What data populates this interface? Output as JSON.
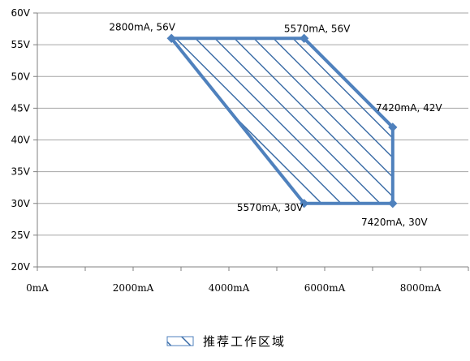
{
  "chart_data": {
    "type": "area",
    "title": "",
    "xlabel": "",
    "ylabel": "",
    "xlim": [
      0,
      9000
    ],
    "ylim": [
      20,
      60
    ],
    "x_ticks": [
      {
        "value": 0,
        "label": "0mA"
      },
      {
        "value": 2000,
        "label": "2000mA"
      },
      {
        "value": 4000,
        "label": "4000mA"
      },
      {
        "value": 6000,
        "label": "6000mA"
      },
      {
        "value": 8000,
        "label": "8000mA"
      }
    ],
    "y_ticks": [
      {
        "value": 20,
        "label": "20V"
      },
      {
        "value": 25,
        "label": "25V"
      },
      {
        "value": 30,
        "label": "30V"
      },
      {
        "value": 35,
        "label": "35V"
      },
      {
        "value": 40,
        "label": "40V"
      },
      {
        "value": 45,
        "label": "45V"
      },
      {
        "value": 50,
        "label": "50V"
      },
      {
        "value": 55,
        "label": "55V"
      },
      {
        "value": 60,
        "label": "60V"
      }
    ],
    "grid": "horizontal",
    "legend_position": "bottom",
    "series": [
      {
        "name": "推荐工作区域",
        "color": "#4f81bd",
        "fill": "diagonal-hatch",
        "points": [
          {
            "x": 2800,
            "y": 56,
            "label": "2800mA, 56V"
          },
          {
            "x": 5570,
            "y": 56,
            "label": "5570mA, 56V"
          },
          {
            "x": 7420,
            "y": 42,
            "label": "7420mA, 42V"
          },
          {
            "x": 7420,
            "y": 30,
            "label": "7420mA, 30V"
          },
          {
            "x": 5570,
            "y": 30,
            "label": "5570mA, 30V"
          }
        ]
      }
    ]
  }
}
